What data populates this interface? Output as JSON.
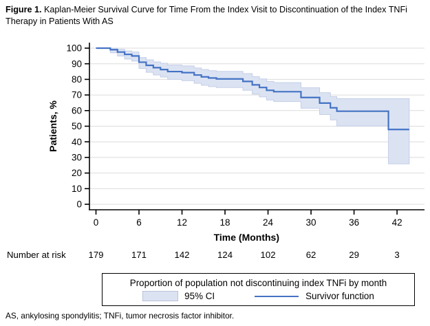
{
  "figure": {
    "title_prefix": "Figure 1.",
    "title_rest": "Kaplan-Meier Survival Curve for Time From the Index Visit to Discontinuation of the Index TNFi Therapy in Patients With AS",
    "footnote": "AS, ankylosing spondylitis; TNFi, tumor necrosis factor inhibitor."
  },
  "chart_data": {
    "type": "line",
    "subtype": "kaplan-meier-step",
    "xlabel": "Time (Months)",
    "ylabel": "Patients, %",
    "xlim": [
      0,
      45.8
    ],
    "ylim": [
      0,
      100
    ],
    "xticks": [
      0,
      6,
      12,
      18,
      24,
      30,
      36,
      42
    ],
    "yticks": [
      0,
      10,
      20,
      30,
      40,
      50,
      60,
      70,
      80,
      90,
      100
    ],
    "grid": "horizontal",
    "legend_position": "bottom-box",
    "colors": {
      "survivor_line": "#4472c4",
      "ci_fill": "#dbe3f3",
      "ci_edge": "#c3cde6",
      "grid": "#dcdcdc",
      "axis": "#000000"
    },
    "series": [
      {
        "name": "Survivor function",
        "style": "step",
        "t": [
          0,
          2,
          3,
          4,
          5,
          6,
          7,
          8,
          9,
          10,
          12,
          13.7,
          14.7,
          15.7,
          16.8,
          20.5,
          21.8,
          22.8,
          23.8,
          24.8,
          28.6,
          31.2,
          32.7,
          33.6,
          40.8
        ],
        "survival": [
          100,
          99,
          97.5,
          96,
          95,
          91,
          89,
          87.5,
          86.3,
          85,
          84.3,
          82.8,
          81.6,
          80.9,
          80.3,
          78.7,
          76.5,
          74.8,
          73,
          72.1,
          68.4,
          64.8,
          61.8,
          59.6,
          47.9
        ],
        "t_end": 43.7
      },
      {
        "name": "95% CI",
        "style": "band",
        "t": [
          0,
          2,
          3,
          4,
          5,
          6,
          7,
          8,
          9,
          10,
          12,
          13.7,
          14.7,
          15.7,
          16.8,
          20.5,
          21.8,
          22.8,
          23.8,
          24.8,
          28.6,
          31.2,
          32.7,
          33.6,
          40.8
        ],
        "lower": [
          100,
          97,
          95,
          93,
          91.7,
          87,
          84.5,
          82.8,
          81.5,
          80,
          79.2,
          77.5,
          76.2,
          75.4,
          74.8,
          73,
          70.6,
          68.8,
          66.8,
          65.8,
          61.5,
          57.5,
          54,
          50.1,
          25.9
        ],
        "upper": [
          100,
          100,
          99.3,
          98.2,
          97.5,
          94,
          92.5,
          91.2,
          90.3,
          89.2,
          88.6,
          87.3,
          86.3,
          85.6,
          85.1,
          83.7,
          81.8,
          80.3,
          78.7,
          77.9,
          74.6,
          71.5,
          69,
          67.7,
          67.7
        ],
        "t_end": 43.7
      }
    ],
    "number_at_risk": {
      "label": "Number at risk",
      "times": [
        0,
        6,
        12,
        18,
        24,
        30,
        36,
        42
      ],
      "values": [
        179,
        171,
        142,
        124,
        102,
        62,
        29,
        3
      ]
    },
    "legend": {
      "title": "Proportion of population not discontinuing index TNFi by month",
      "ci_label": "95% CI",
      "line_label": "Survivor function"
    }
  }
}
